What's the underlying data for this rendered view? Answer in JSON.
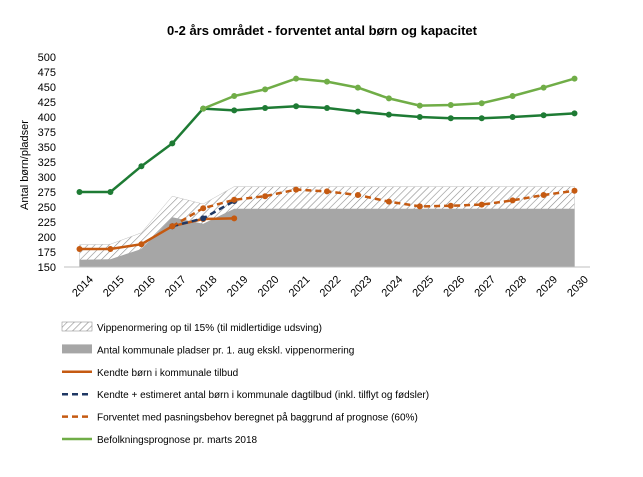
{
  "chart_data": {
    "type": "line",
    "title": "0-2 års området - forventet antal børn og kapacitet",
    "ylabel": "Antal børn/pladser",
    "xlabel": "",
    "ylim": [
      150,
      500
    ],
    "yticks": [
      150,
      175,
      200,
      225,
      250,
      275,
      300,
      325,
      350,
      375,
      400,
      425,
      450,
      475,
      500
    ],
    "categories": [
      "2014",
      "2015",
      "2016",
      "2017",
      "2018",
      "2019",
      "2020",
      "2021",
      "2022",
      "2023",
      "2024",
      "2025",
      "2026",
      "2027",
      "2028",
      "2029",
      "2030"
    ],
    "grid": false,
    "legend_position": "bottom",
    "colors": {
      "gray_area": "#a6a6a6",
      "hatch": "#999999",
      "known": "#c55a11",
      "estimated": "#1f3864",
      "expected": "#c55a11",
      "population": "#70ad47",
      "capacity_line": "#1e7b34"
    },
    "series": [
      {
        "name": "Vippenormering op til 15% (til midlertidige udsving)",
        "kind": "hatched-area",
        "values": [
          187,
          188,
          207,
          268,
          255,
          284,
          284,
          284,
          284,
          284,
          284,
          284,
          284,
          284,
          284,
          284,
          284
        ]
      },
      {
        "name": "Antal kommunale pladser pr. 1. aug ekskl. vippenormering",
        "kind": "area",
        "values": [
          162,
          163,
          180,
          233,
          222,
          247,
          247,
          247,
          247,
          247,
          247,
          247,
          247,
          247,
          247,
          247,
          247
        ]
      },
      {
        "name": "Kendte børn i kommunale tilbud",
        "kind": "line",
        "values": [
          180,
          180,
          188,
          218,
          230,
          231,
          null,
          null,
          null,
          null,
          null,
          null,
          null,
          null,
          null,
          null,
          null
        ]
      },
      {
        "name": "Kendte + estimeret antal børn i kommunale dagtilbud (inkl. tilflyt og fødsler)",
        "kind": "dashed-line",
        "values": [
          null,
          null,
          null,
          218,
          231,
          260,
          null,
          null,
          null,
          null,
          null,
          null,
          null,
          null,
          null,
          null,
          null
        ]
      },
      {
        "name": "Forventet med pasningsbehov beregnet på baggrund af prognose (60%)",
        "kind": "dashed-line",
        "values": [
          null,
          null,
          null,
          218,
          248,
          262,
          268,
          279,
          276,
          270,
          259,
          251,
          252,
          254,
          261,
          270,
          277
        ]
      },
      {
        "name": "Befolkningsprognose pr. marts 2018",
        "kind": "line",
        "values": [
          null,
          null,
          null,
          null,
          414,
          435,
          446,
          464,
          459,
          449,
          431,
          419,
          420,
          423,
          435,
          449,
          464
        ]
      },
      {
        "name": "",
        "kind": "line",
        "values": [
          275,
          275,
          318,
          356,
          414,
          411,
          415,
          418,
          415,
          409,
          404,
          400,
          398,
          398,
          400,
          403,
          406
        ]
      }
    ]
  }
}
